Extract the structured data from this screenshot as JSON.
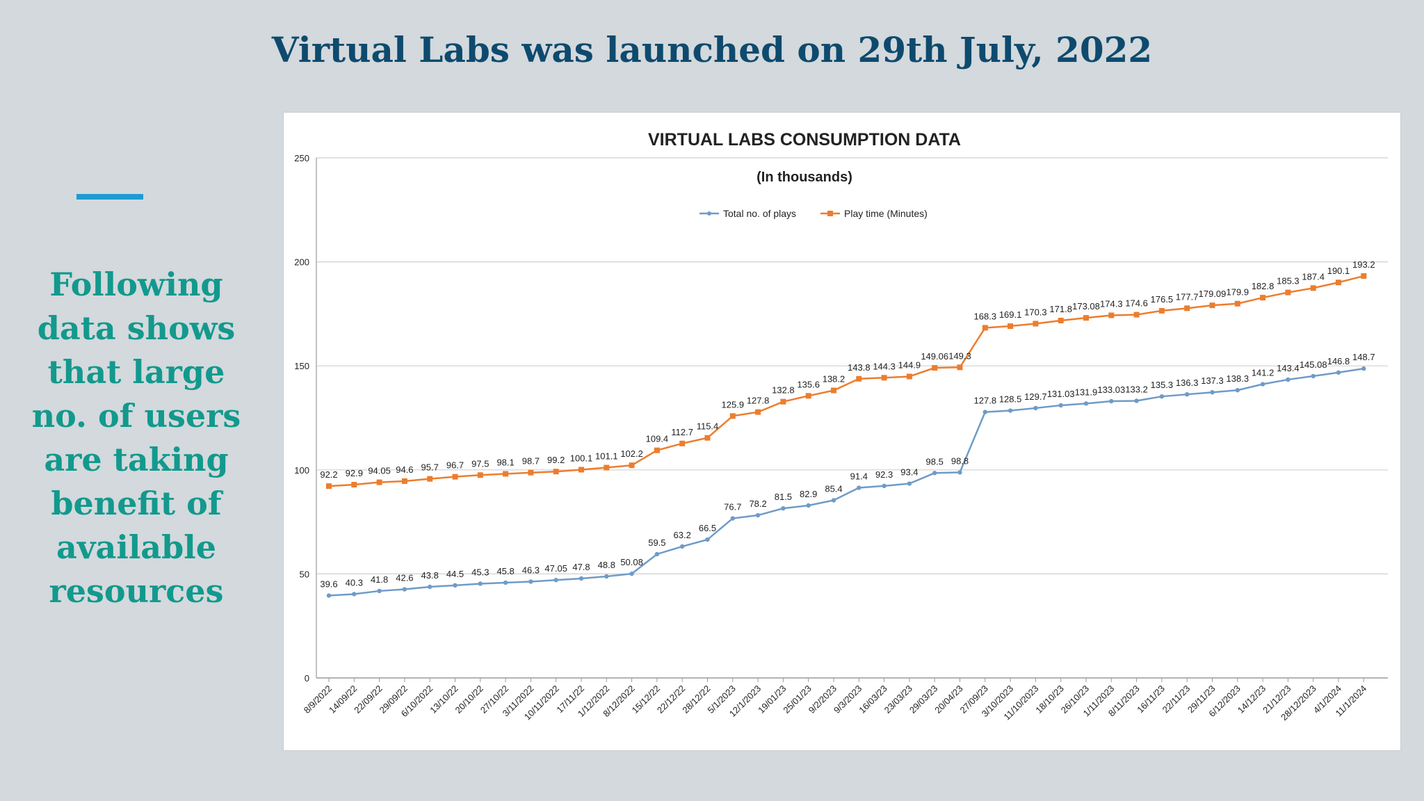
{
  "headline": "Virtual Labs was launched on 29th July, 2022",
  "side_text": "Following data shows that large no. of users are taking benefit of available resources",
  "colors": {
    "headline": "#0e4a6e",
    "side_text": "#12998d",
    "accent": "#1e9ad6",
    "series_plays": "#6f9bc8",
    "series_playtime": "#ec7d2e"
  },
  "chart_data": {
    "type": "line",
    "title": "VIRTUAL LABS CONSUMPTION DATA",
    "subtitle": "(In thousands)",
    "legend_position": "top-center",
    "grid": true,
    "ylim": [
      0,
      250
    ],
    "yticks": [
      "0",
      "50",
      "100",
      "150",
      "200",
      "250"
    ],
    "categories": [
      "8/9/2022",
      "14/09/22",
      "22/09/22",
      "29/09/22",
      "6/10/2022",
      "13/10/22",
      "20/10/22",
      "27/10/22",
      "3/11/2022",
      "10/11/2022",
      "17/11/22",
      "1/12/2022",
      "8/12/2022",
      "15/12/22",
      "22/12/22",
      "28/12/22",
      "5/1/2023",
      "12/1/2023",
      "19/01/23",
      "25/01/23",
      "9/2/2023",
      "9/3/2023",
      "16/03/23",
      "23/03/23",
      "29/03/23",
      "20/04/23",
      "27/09/23",
      "3/10/2023",
      "11/10/2023",
      "18/10/23",
      "26/10/23",
      "1/11/2023",
      "8/11/2023",
      "16/11/23",
      "22/11/23",
      "29/11/23",
      "6/12/2023",
      "14/12/23",
      "21/12/23",
      "28/12/2023",
      "4/1/2024",
      "11/1/2024"
    ],
    "series": [
      {
        "name": "Total no. of plays",
        "values": [
          39.6,
          40.3,
          41.8,
          42.6,
          43.8,
          44.5,
          45.3,
          45.8,
          46.3,
          47.05,
          47.8,
          48.8,
          50.08,
          59.5,
          63.2,
          66.5,
          76.7,
          78.2,
          81.5,
          82.9,
          85.4,
          91.4,
          92.3,
          93.4,
          98.5,
          98.8,
          127.8,
          128.5,
          129.7,
          131.03,
          131.9,
          133.03,
          133.2,
          135.3,
          136.3,
          137.3,
          138.3,
          141.2,
          143.4,
          145.08,
          146.8,
          148.7
        ],
        "labels": [
          "39.6",
          "40.3",
          "41.8",
          "42.6",
          "43.8",
          "44.5",
          "45.3",
          "45.8",
          "46.3",
          "47.05",
          "47.8",
          "48.8",
          "50.08",
          "59.5",
          "63.2",
          "66.5",
          "76.7",
          "78.2",
          "81.5",
          "82.9",
          "85.4",
          "91.4",
          "92.3",
          "93.4",
          "98.5",
          "98.8",
          "127.8",
          "128.5",
          "129.7",
          "131.03",
          "131.9",
          "133.03",
          "133.2",
          "135.3",
          "136.3",
          "137.3",
          "138.3",
          "141.2",
          "143.4",
          "145.08",
          "146.8",
          "148.7"
        ]
      },
      {
        "name": "Play time (Minutes)",
        "values": [
          92.2,
          92.9,
          94.05,
          94.6,
          95.7,
          96.7,
          97.5,
          98.1,
          98.7,
          99.2,
          100.1,
          101.1,
          102.2,
          109.4,
          112.7,
          115.4,
          125.9,
          127.8,
          132.8,
          135.6,
          138.2,
          143.8,
          144.3,
          144.9,
          149.06,
          149.3,
          168.3,
          169.1,
          170.3,
          171.8,
          173.08,
          174.3,
          174.6,
          176.5,
          177.7,
          179.09,
          179.9,
          182.8,
          185.3,
          187.4,
          190.1,
          193.2
        ],
        "labels": [
          "92.2",
          "92.9",
          "94.05",
          "94.6",
          "95.7",
          "96.7",
          "97.5",
          "98.1",
          "98.7",
          "99.2",
          "100.1",
          "101.1",
          "102.2",
          "109.4",
          "112.7",
          "115.4",
          "125.9",
          "127.8",
          "132.8",
          "135.6",
          "138.2",
          "143.8",
          "144.3",
          "144.9",
          "149.06",
          "149.3",
          "168.3",
          "169.1",
          "170.3",
          "171.8",
          "173.08",
          "174.3",
          "174.6",
          "176.5",
          "177.7",
          "179.09",
          "179.9",
          "182.8",
          "185.3",
          "187.4",
          "190.1",
          "193.2"
        ]
      }
    ]
  }
}
